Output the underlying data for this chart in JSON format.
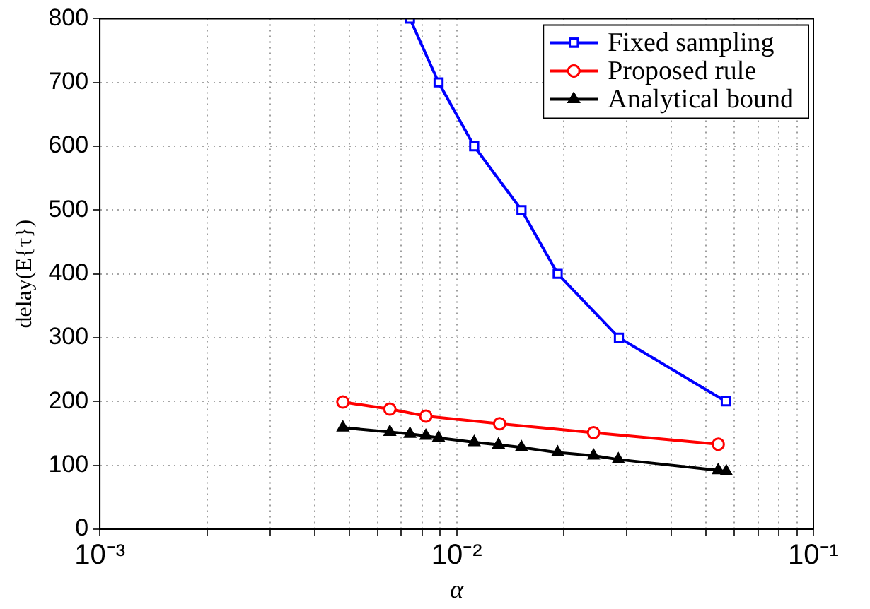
{
  "chart_data": {
    "type": "line",
    "xlabel": "α",
    "ylabel": "delay(E{τ})",
    "log": "x",
    "xlim": [
      0.001,
      0.1
    ],
    "xticks": [
      {
        "value": 0.001,
        "label": "10⁻³"
      },
      {
        "value": 0.002,
        "label": null
      },
      {
        "value": 0.003,
        "label": null
      },
      {
        "value": 0.004,
        "label": null
      },
      {
        "value": 0.005,
        "label": null
      },
      {
        "value": 0.006,
        "label": null
      },
      {
        "value": 0.007,
        "label": null
      },
      {
        "value": 0.008,
        "label": null
      },
      {
        "value": 0.009,
        "label": null
      },
      {
        "value": 0.01,
        "label": "10⁻²"
      },
      {
        "value": 0.02,
        "label": null
      },
      {
        "value": 0.03,
        "label": null
      },
      {
        "value": 0.04,
        "label": null
      },
      {
        "value": 0.05,
        "label": null
      },
      {
        "value": 0.06,
        "label": null
      },
      {
        "value": 0.07,
        "label": null
      },
      {
        "value": 0.08,
        "label": null
      },
      {
        "value": 0.09,
        "label": null
      },
      {
        "value": 0.1,
        "label": "10⁻¹"
      }
    ],
    "ylim": [
      0,
      800
    ],
    "yticks": [
      0,
      100,
      200,
      300,
      400,
      500,
      600,
      700,
      800
    ],
    "grid": true,
    "legend": "top right",
    "line_style": "solid",
    "series": [
      {
        "name": "Fixed sampling",
        "color": "#0000ff",
        "marker": "square",
        "x": [
          0.0074,
          0.0089,
          0.0112,
          0.0152,
          0.0192,
          0.0285,
          0.0568
        ],
        "values": [
          800,
          700,
          600,
          500,
          400,
          300,
          200
        ]
      },
      {
        "name": "Proposed rule",
        "color": "#ff0000",
        "marker": "circle",
        "x": [
          0.0048,
          0.0065,
          0.0082,
          0.0132,
          0.0242,
          0.0541
        ],
        "values": [
          199,
          188,
          177,
          165,
          151,
          133
        ]
      },
      {
        "name": "Analytical bound",
        "color": "#000000",
        "marker": "triangle",
        "x": [
          0.0048,
          0.0065,
          0.0074,
          0.0082,
          0.0089,
          0.0112,
          0.0131,
          0.0152,
          0.0192,
          0.0242,
          0.0284,
          0.0541,
          0.057
        ],
        "values": [
          159,
          152,
          149,
          146,
          143,
          136,
          132,
          128,
          120,
          115,
          109,
          92,
          90
        ]
      }
    ]
  }
}
